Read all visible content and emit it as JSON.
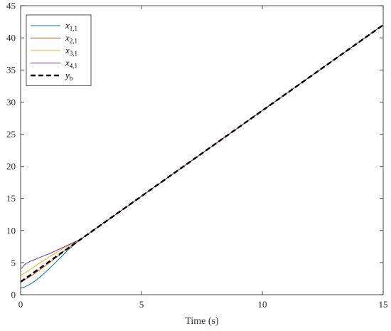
{
  "chart_data": {
    "type": "line",
    "title": "",
    "xlabel": "Time (s)",
    "ylabel": "",
    "xlim": [
      0,
      15
    ],
    "ylim": [
      0,
      45
    ],
    "xticks": [
      0,
      5,
      10,
      15
    ],
    "yticks": [
      0,
      5,
      10,
      15,
      20,
      25,
      30,
      35,
      40,
      45
    ],
    "grid": false,
    "legend_position": "top-left",
    "series": [
      {
        "name": "x",
        "subscript": "1,1",
        "color": "#0072BD",
        "dash": "solid",
        "x": [
          0,
          0.2,
          0.4,
          0.6,
          0.8,
          1.0,
          1.2,
          1.4,
          1.6,
          1.8,
          2.0,
          2.2,
          2.4,
          2.5,
          3.0,
          5.0,
          10.0,
          15.0
        ],
        "y": [
          1.0,
          1.25,
          1.65,
          2.15,
          2.75,
          3.4,
          4.1,
          4.85,
          5.6,
          6.35,
          7.1,
          7.75,
          8.4,
          8.67,
          10.0,
          15.33,
          28.67,
          42.0
        ]
      },
      {
        "name": "x",
        "subscript": "2,1",
        "color": "#D95319",
        "dash": "solid",
        "x": [
          0,
          0.2,
          0.4,
          0.6,
          0.8,
          1.0,
          1.2,
          1.4,
          1.6,
          1.8,
          2.0,
          2.2,
          2.4,
          2.5,
          3.0,
          5.0,
          10.0,
          15.0
        ],
        "y": [
          2.0,
          2.4,
          2.85,
          3.35,
          3.9,
          4.45,
          5.0,
          5.6,
          6.2,
          6.8,
          7.35,
          7.9,
          8.4,
          8.67,
          10.0,
          15.33,
          28.67,
          42.0
        ]
      },
      {
        "name": "x",
        "subscript": "3,1",
        "color": "#EDB120",
        "dash": "solid",
        "x": [
          0,
          0.2,
          0.4,
          0.6,
          0.8,
          1.0,
          1.2,
          1.4,
          1.6,
          1.8,
          2.0,
          2.2,
          2.4,
          2.5,
          3.0,
          5.0,
          10.0,
          15.0
        ],
        "y": [
          3.0,
          3.45,
          3.95,
          4.45,
          4.95,
          5.45,
          5.95,
          6.4,
          6.85,
          7.3,
          7.7,
          8.1,
          8.45,
          8.67,
          10.0,
          15.33,
          28.67,
          42.0
        ]
      },
      {
        "name": "x",
        "subscript": "4,1",
        "color": "#7E2F8E",
        "dash": "solid",
        "x": [
          0,
          0.2,
          0.4,
          0.6,
          0.8,
          1.0,
          1.2,
          1.4,
          1.6,
          1.8,
          2.0,
          2.2,
          2.4,
          2.5,
          3.0,
          5.0,
          10.0,
          15.0
        ],
        "y": [
          4.0,
          4.8,
          5.2,
          5.5,
          5.8,
          6.1,
          6.4,
          6.75,
          7.1,
          7.45,
          7.8,
          8.15,
          8.45,
          8.67,
          10.0,
          15.33,
          28.67,
          42.0
        ]
      },
      {
        "name": "y",
        "subscript": "b",
        "color": "#000000",
        "dash": "dashed",
        "x": [
          0,
          15
        ],
        "y": [
          2.0,
          42.0
        ]
      }
    ]
  }
}
